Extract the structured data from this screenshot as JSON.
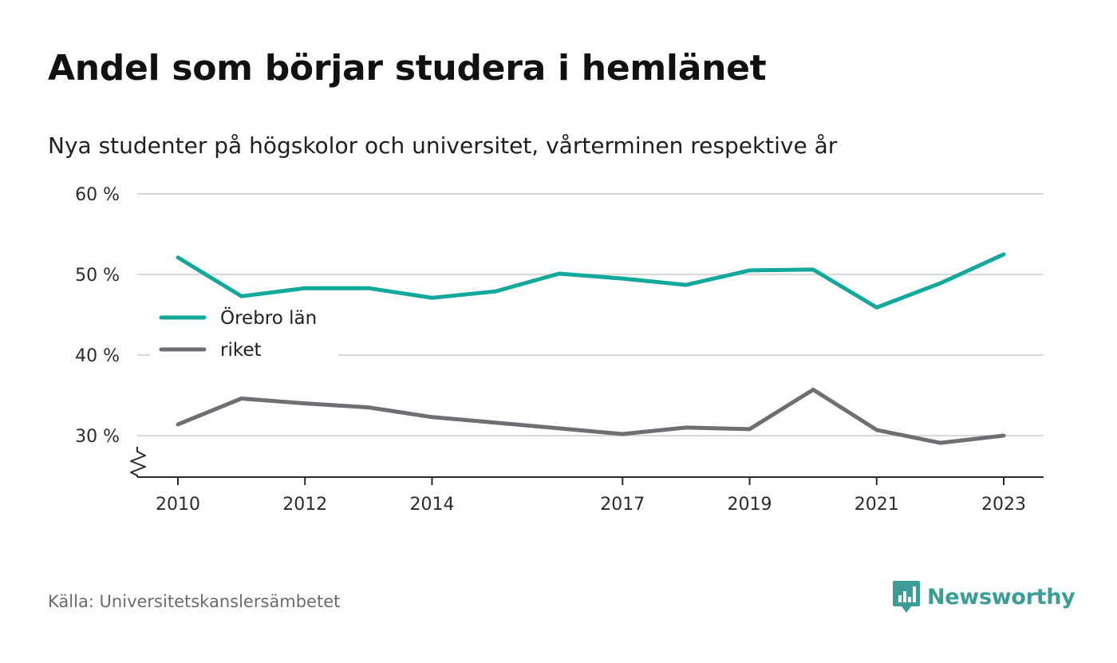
{
  "title": "Andel som börjar studera i hemlänet",
  "subtitle": "Nya studenter på högskolor och universitet, vårterminen respektive år",
  "source": "Källa: Universitetskanslersämbetet",
  "brand": {
    "name": "Newsworthy",
    "icon": "newsworthy-logo-icon",
    "color": "#3a9d96"
  },
  "chart_data": {
    "type": "line",
    "x": [
      2010,
      2011,
      2012,
      2013,
      2014,
      2015,
      2016,
      2017,
      2018,
      2019,
      2020,
      2021,
      2022,
      2023
    ],
    "x_ticks": [
      "2010",
      "2012",
      "2014",
      "2017",
      "2019",
      "2021",
      "2023"
    ],
    "x_tick_values": [
      2010,
      2012,
      2014,
      2017,
      2019,
      2021,
      2023
    ],
    "y_ticks": [
      "30 %",
      "40 %",
      "50 %",
      "60 %"
    ],
    "y_tick_values": [
      30,
      40,
      50,
      60
    ],
    "ylim": [
      25,
      60
    ],
    "axis_break": true,
    "grid": true,
    "legend_position": "left",
    "series": [
      {
        "name": "Örebro län",
        "color": "#12a89b",
        "values": [
          52.1,
          47.3,
          48.3,
          48.3,
          47.1,
          47.9,
          50.1,
          49.5,
          48.7,
          50.5,
          50.6,
          45.9,
          48.9,
          52.5
        ]
      },
      {
        "name": "riket",
        "color": "#6f6e73",
        "values": [
          31.4,
          34.6,
          34.0,
          33.5,
          32.3,
          31.6,
          30.9,
          30.2,
          31.0,
          30.8,
          35.7,
          30.7,
          29.1,
          30.0
        ]
      }
    ]
  }
}
